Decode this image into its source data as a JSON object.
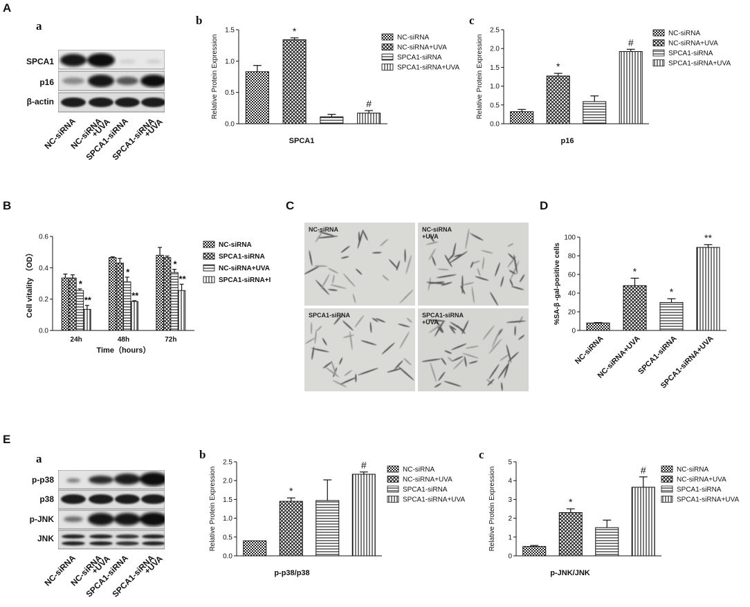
{
  "panels": {
    "A": "A",
    "B": "B",
    "C": "C",
    "D": "D",
    "E": "E",
    "A_a": "a",
    "A_b": "b",
    "A_c": "c",
    "E_a": "a",
    "E_b": "b",
    "E_c": "c"
  },
  "blot_A": {
    "rows": [
      "SPCA1",
      "p16",
      "β-actin"
    ],
    "lanes": [
      "NC-siRNA",
      "NC-siRNA\n+UVA",
      "SPCA1-siRNA",
      "SPCA1-siRNA\n+UVA"
    ]
  },
  "blot_E": {
    "rows": [
      "p-p38",
      "p38",
      "p-JNK",
      "JNK"
    ],
    "lanes": [
      "NC-siRNA",
      "NC-siRNA\n+UVA",
      "SPCA1-siRNA",
      "SPCA1-siRNA\n+UVA"
    ]
  },
  "micrographs": {
    "labels": [
      "NC-siRNA",
      "NC-siRNA\n+UVA",
      "SPCA1-siRNA",
      "SPCA1-siRNA\n+UVA"
    ]
  },
  "colors": {
    "ink": "#111111",
    "background": "#ffffff",
    "micrograph": "#d9d9d6"
  },
  "chart_data": [
    {
      "id": "A_b",
      "type": "bar",
      "categories": [
        "NC-siRNA",
        "NC-siRNA+UVA",
        "SPCA1-siRNA",
        "SPCA1-siRNA+UVA"
      ],
      "values": [
        0.83,
        1.34,
        0.11,
        0.17
      ],
      "errors": [
        0.1,
        0.03,
        0.04,
        0.04
      ],
      "annotations": [
        "",
        "*",
        "",
        "#"
      ],
      "patterns": [
        "checker",
        "cross",
        "hlines",
        "vlines"
      ],
      "ylabel": "Relative Protein Expression",
      "xlabel": "SPCA1",
      "ylim": [
        0,
        1.5
      ],
      "yticks": [
        0.0,
        0.5,
        1.0,
        1.5
      ],
      "legend": [
        "NC-siRNA",
        "NC-siRNA+UVA",
        "SPCA1-siRNA",
        "SPCA1-siRNA+UVA"
      ],
      "legend_position": "right"
    },
    {
      "id": "A_c",
      "type": "bar",
      "categories": [
        "NC-siRNA",
        "NC-siRNA+UVA",
        "SPCA1-siRNA",
        "SPCA1-siRNA+UVA"
      ],
      "values": [
        0.32,
        1.27,
        0.59,
        1.92
      ],
      "errors": [
        0.06,
        0.07,
        0.15,
        0.06
      ],
      "annotations": [
        "",
        "*",
        "",
        "#"
      ],
      "patterns": [
        "checker",
        "cross",
        "hlines",
        "vlines"
      ],
      "ylabel": "Relative Protein Expression",
      "xlabel": "p16",
      "ylim": [
        0,
        2.5
      ],
      "yticks": [
        0.0,
        0.5,
        1.0,
        1.5,
        2.0,
        2.5
      ],
      "legend": [
        "NC-siRNA",
        "NC-siRNA+UVA",
        "SPCA1-siRNA",
        "SPCA1-siRNA+UVA"
      ],
      "legend_position": "right"
    },
    {
      "id": "B",
      "type": "bar",
      "categories": [
        "24h",
        "48h",
        "72h"
      ],
      "series": [
        {
          "name": "NC-siRNA",
          "values": [
            0.335,
            0.465,
            0.48
          ],
          "errors": [
            0.025,
            0.005,
            0.05
          ],
          "pattern": "checker",
          "annotations": [
            "",
            "",
            ""
          ]
        },
        {
          "name": "SPCA1-siRNA",
          "values": [
            0.335,
            0.43,
            0.465
          ],
          "errors": [
            0.02,
            0.03,
            0.01
          ],
          "pattern": "cross",
          "annotations": [
            "",
            "",
            ""
          ]
        },
        {
          "name": "NC-siRNA+UVA",
          "values": [
            0.255,
            0.31,
            0.37
          ],
          "errors": [
            0.01,
            0.03,
            0.02
          ],
          "pattern": "hlines",
          "annotations": [
            "*",
            "*",
            "*"
          ]
        },
        {
          "name": "SPCA1-siRNA+I",
          "values": [
            0.135,
            0.185,
            0.255
          ],
          "errors": [
            0.025,
            0.005,
            0.04
          ],
          "pattern": "vlines",
          "annotations": [
            "**",
            "**",
            "**"
          ]
        }
      ],
      "ylabel": "Cell vitality  （OD）",
      "xlabel": "Time（hours）",
      "ylim": [
        0,
        0.6
      ],
      "yticks": [
        0.0,
        0.2,
        0.4,
        0.6
      ],
      "legend_position": "right"
    },
    {
      "id": "D",
      "type": "bar",
      "categories": [
        "NC-siRNA",
        "NC-siRNA+UVA",
        "SPCA1-siRNA",
        "SPCA1-siRNA+UVA"
      ],
      "values": [
        8,
        48,
        30,
        89
      ],
      "errors": [
        0.5,
        8,
        4,
        3
      ],
      "annotations": [
        "",
        "*",
        "*",
        "**"
      ],
      "patterns": [
        "checker",
        "cross",
        "hlines",
        "vlines"
      ],
      "ylabel": "%SA-β -gal-positive cells",
      "ylim": [
        0,
        100
      ],
      "yticks": [
        0,
        20,
        40,
        60,
        80,
        100
      ]
    },
    {
      "id": "E_b",
      "type": "bar",
      "categories": [
        "NC-siRNA",
        "NC-siRNA+UVA",
        "SPCA1-siRNA",
        "SPCA1-siRNA+UVA"
      ],
      "values": [
        0.4,
        1.45,
        1.47,
        2.17
      ],
      "errors": [
        0,
        0.09,
        0.55,
        0.06
      ],
      "annotations": [
        "",
        "*",
        "",
        "#"
      ],
      "patterns": [
        "checker",
        "cross",
        "hlines",
        "vlines"
      ],
      "ylabel": "Relative Protein Expression",
      "xlabel": "p-p38/p38",
      "ylim": [
        0,
        2.5
      ],
      "yticks": [
        0.0,
        0.5,
        1.0,
        1.5,
        2.0,
        2.5
      ],
      "legend": [
        "NC-siRNA",
        "NC-siRNA+UVA",
        "SPCA1-siRNA",
        "SPCA1-siRNA+UVA"
      ],
      "legend_position": "right"
    },
    {
      "id": "E_c",
      "type": "bar",
      "categories": [
        "NC-siRNA",
        "NC-siRNA+UVA",
        "SPCA1-siRNA",
        "SPCA1-siRNA+UVA"
      ],
      "values": [
        0.5,
        2.3,
        1.5,
        3.65
      ],
      "errors": [
        0.05,
        0.2,
        0.4,
        0.55
      ],
      "annotations": [
        "",
        "*",
        "",
        "#"
      ],
      "patterns": [
        "checker",
        "cross",
        "hlines",
        "vlines"
      ],
      "ylabel": "Relative Protein Expression",
      "xlabel": "p-JNK/JNK",
      "ylim": [
        0,
        5
      ],
      "yticks": [
        0,
        1,
        2,
        3,
        4,
        5
      ],
      "legend": [
        "NC-siRNA",
        "NC-siRNA+UVA",
        "SPCA1-siRNA",
        "SPCA1-siRNA+UVA"
      ],
      "legend_position": "right"
    }
  ]
}
